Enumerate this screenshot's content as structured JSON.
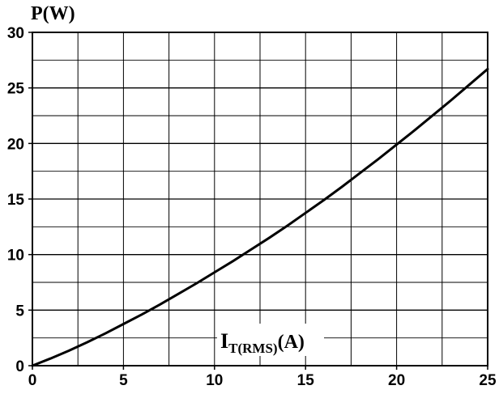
{
  "chart_data": {
    "type": "line",
    "title": "",
    "xlabel_main": "I",
    "xlabel_sub": "T(RMS)",
    "xlabel_unit": "(A)",
    "ylabel": "P(W)",
    "xlim": [
      0,
      25
    ],
    "ylim": [
      0,
      30
    ],
    "x_ticks": [
      "0",
      "5",
      "10",
      "15",
      "20",
      "25"
    ],
    "y_ticks": [
      "0",
      "5",
      "10",
      "15",
      "20",
      "25",
      "30"
    ],
    "grid": true,
    "line_color": "#000000",
    "series": [
      {
        "x": [
          0,
          1,
          2,
          3,
          4,
          5,
          6,
          7,
          8,
          9,
          10,
          11,
          12,
          13,
          14,
          15,
          16,
          17,
          18,
          19,
          20,
          21,
          22,
          23,
          24,
          25
        ],
        "y": [
          0,
          0.65,
          1.35,
          2.1,
          2.9,
          3.75,
          4.6,
          5.5,
          6.45,
          7.4,
          8.4,
          9.4,
          10.45,
          11.5,
          12.6,
          13.75,
          14.9,
          16.1,
          17.35,
          18.6,
          19.9,
          21.2,
          22.55,
          23.9,
          25.3,
          26.7
        ]
      }
    ]
  }
}
